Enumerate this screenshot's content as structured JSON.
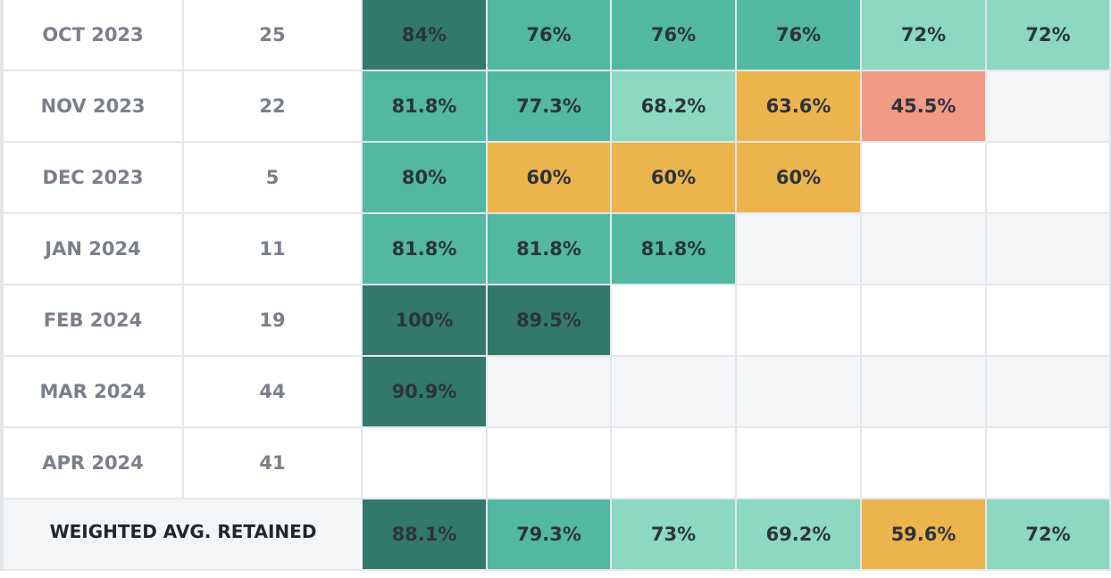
{
  "colors": {
    "high": "#32796b",
    "good": "#52b8a4",
    "ok": "#8dd8c1",
    "mid": "#ecb44d",
    "low": "#f19b87",
    "no_data": "#f4f5f7",
    "empty": "#ffffff"
  },
  "rows": [
    {
      "cohort": "OCT 2023",
      "count": "25",
      "cells": [
        {
          "text": "84%",
          "level": "high"
        },
        {
          "text": "76%",
          "level": "good"
        },
        {
          "text": "76%",
          "level": "good"
        },
        {
          "text": "76%",
          "level": "good"
        },
        {
          "text": "72%",
          "level": "ok"
        },
        {
          "text": "72%",
          "level": "ok"
        }
      ]
    },
    {
      "cohort": "NOV 2023",
      "count": "22",
      "cells": [
        {
          "text": "81.8%",
          "level": "good"
        },
        {
          "text": "77.3%",
          "level": "good"
        },
        {
          "text": "68.2%",
          "level": "ok"
        },
        {
          "text": "63.6%",
          "level": "mid"
        },
        {
          "text": "45.5%",
          "level": "low"
        },
        {
          "text": "",
          "level": "no_data"
        }
      ]
    },
    {
      "cohort": "DEC 2023",
      "count": "5",
      "cells": [
        {
          "text": "80%",
          "level": "good"
        },
        {
          "text": "60%",
          "level": "mid"
        },
        {
          "text": "60%",
          "level": "mid"
        },
        {
          "text": "60%",
          "level": "mid"
        },
        {
          "text": "",
          "level": "empty"
        },
        {
          "text": "",
          "level": "empty"
        }
      ]
    },
    {
      "cohort": "JAN 2024",
      "count": "11",
      "cells": [
        {
          "text": "81.8%",
          "level": "good"
        },
        {
          "text": "81.8%",
          "level": "good"
        },
        {
          "text": "81.8%",
          "level": "good"
        },
        {
          "text": "",
          "level": "no_data"
        },
        {
          "text": "",
          "level": "no_data"
        },
        {
          "text": "",
          "level": "no_data"
        }
      ]
    },
    {
      "cohort": "FEB 2024",
      "count": "19",
      "cells": [
        {
          "text": "100%",
          "level": "high"
        },
        {
          "text": "89.5%",
          "level": "high"
        },
        {
          "text": "",
          "level": "empty"
        },
        {
          "text": "",
          "level": "empty"
        },
        {
          "text": "",
          "level": "empty"
        },
        {
          "text": "",
          "level": "empty"
        }
      ]
    },
    {
      "cohort": "MAR 2024",
      "count": "44",
      "cells": [
        {
          "text": "90.9%",
          "level": "high"
        },
        {
          "text": "",
          "level": "no_data"
        },
        {
          "text": "",
          "level": "no_data"
        },
        {
          "text": "",
          "level": "no_data"
        },
        {
          "text": "",
          "level": "no_data"
        },
        {
          "text": "",
          "level": "no_data"
        }
      ]
    },
    {
      "cohort": "APR 2024",
      "count": "41",
      "cells": [
        {
          "text": "",
          "level": "empty"
        },
        {
          "text": "",
          "level": "empty"
        },
        {
          "text": "",
          "level": "empty"
        },
        {
          "text": "",
          "level": "empty"
        },
        {
          "text": "",
          "level": "empty"
        },
        {
          "text": "",
          "level": "empty"
        }
      ]
    }
  ],
  "footer": {
    "label": "WEIGHTED AVG. RETAINED",
    "cells": [
      {
        "text": "88.1%",
        "level": "high"
      },
      {
        "text": "79.3%",
        "level": "good"
      },
      {
        "text": "73%",
        "level": "ok"
      },
      {
        "text": "69.2%",
        "level": "ok"
      },
      {
        "text": "59.6%",
        "level": "mid"
      },
      {
        "text": "72%",
        "level": "ok"
      }
    ]
  }
}
